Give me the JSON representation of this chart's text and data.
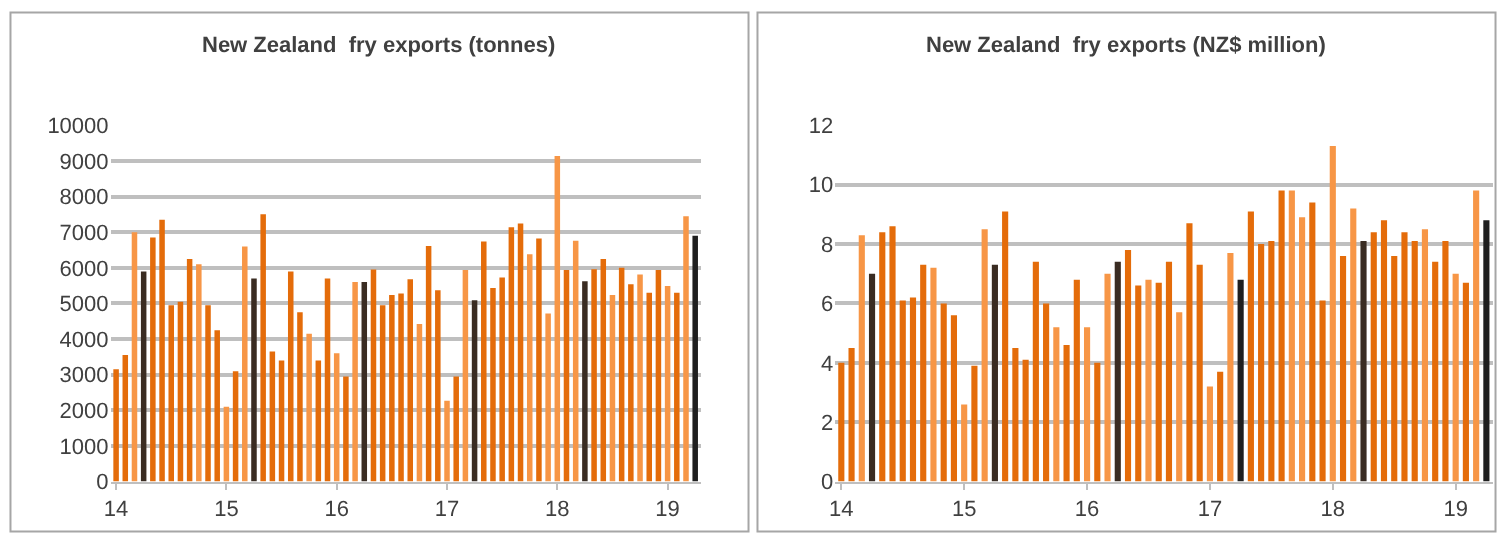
{
  "chart_data": [
    {
      "type": "bar",
      "title": "New Zealand  fry exports (tonnes)",
      "categories": [
        "14",
        null,
        null,
        null,
        null,
        null,
        null,
        null,
        null,
        null,
        null,
        null,
        "15",
        null,
        null,
        null,
        null,
        null,
        null,
        null,
        null,
        null,
        null,
        null,
        "16",
        null,
        null,
        null,
        null,
        null,
        null,
        null,
        null,
        null,
        null,
        null,
        "17",
        null,
        null,
        null,
        null,
        null,
        null,
        null,
        null,
        null,
        null,
        null,
        "18",
        null,
        null,
        null,
        null,
        null,
        null,
        null,
        null,
        null,
        null,
        null,
        "19",
        null,
        null,
        null
      ],
      "values": [
        3150,
        3550,
        7000,
        5900,
        6850,
        7350,
        4950,
        5050,
        6250,
        6100,
        4950,
        4250,
        2100,
        3100,
        6600,
        5700,
        7500,
        3650,
        3400,
        5900,
        4750,
        4150,
        3400,
        5700,
        3600,
        2950,
        5600,
        5600,
        5950,
        4950,
        5240,
        5280,
        5680,
        4420,
        6610,
        5370,
        2270,
        2950,
        5940,
        5090,
        6740,
        5430,
        5730,
        7140,
        7240,
        6380,
        6820,
        4720,
        9140,
        5940,
        6760,
        5620,
        5960,
        6250,
        5240,
        6000,
        5540,
        5810,
        5300,
        5940,
        5490,
        5300,
        7450,
        6900
      ],
      "colors": [
        "#e46c0a",
        "#e46c0a",
        "#f79646",
        "#3a2c22",
        "#e46c0a",
        "#e46c0a",
        "#e46c0a",
        "#e46c0a",
        "#e46c0a",
        "#f79646",
        "#e46c0a",
        "#e46c0a",
        "#f79646",
        "#e46c0a",
        "#f79646",
        "#3a2c22",
        "#e46c0a",
        "#e46c0a",
        "#e46c0a",
        "#e46c0a",
        "#e46c0a",
        "#f79646",
        "#e46c0a",
        "#e46c0a",
        "#f79646",
        "#e46c0a",
        "#f79646",
        "#3a2c22",
        "#e46c0a",
        "#e46c0a",
        "#e46c0a",
        "#e46c0a",
        "#e46c0a",
        "#f79646",
        "#e46c0a",
        "#e46c0a",
        "#f79646",
        "#e46c0a",
        "#f79646",
        "#3a2c22",
        "#e46c0a",
        "#e46c0a",
        "#e46c0a",
        "#e46c0a",
        "#e46c0a",
        "#f79646",
        "#e46c0a",
        "#f79646",
        "#f79646",
        "#e46c0a",
        "#f79646",
        "#3a2c22",
        "#e46c0a",
        "#e46c0a",
        "#f79646",
        "#e46c0a",
        "#e46c0a",
        "#f79646",
        "#e46c0a",
        "#e46c0a",
        "#f79646",
        "#e46c0a",
        "#f79646",
        "#1f1f1f"
      ],
      "ylim": [
        0,
        10000
      ],
      "yticks": [
        0,
        1000,
        2000,
        3000,
        4000,
        5000,
        6000,
        7000,
        8000,
        9000,
        10000
      ],
      "grid": "y"
    },
    {
      "type": "bar",
      "title": "New Zealand  fry exports (NZ$ million)",
      "categories": [
        "14",
        null,
        null,
        null,
        null,
        null,
        null,
        null,
        null,
        null,
        null,
        null,
        "15",
        null,
        null,
        null,
        null,
        null,
        null,
        null,
        null,
        null,
        null,
        null,
        "16",
        null,
        null,
        null,
        null,
        null,
        null,
        null,
        null,
        null,
        null,
        null,
        "17",
        null,
        null,
        null,
        null,
        null,
        null,
        null,
        null,
        null,
        null,
        null,
        "18",
        null,
        null,
        null,
        null,
        null,
        null,
        null,
        null,
        null,
        null,
        null,
        "19",
        null,
        null,
        null
      ],
      "values": [
        4.0,
        4.5,
        8.3,
        7.0,
        8.4,
        8.6,
        6.1,
        6.2,
        7.3,
        7.2,
        6.0,
        5.6,
        2.6,
        3.9,
        8.5,
        7.3,
        9.1,
        4.5,
        4.1,
        7.4,
        6.0,
        5.2,
        4.6,
        6.8,
        5.2,
        4.0,
        7.0,
        7.4,
        7.8,
        6.6,
        6.8,
        6.7,
        7.4,
        5.7,
        8.7,
        7.3,
        3.2,
        3.7,
        7.7,
        6.8,
        9.1,
        8.0,
        8.1,
        9.8,
        9.8,
        8.9,
        9.4,
        6.1,
        11.3,
        7.6,
        9.2,
        8.1,
        8.4,
        8.8,
        7.6,
        8.4,
        8.1,
        8.5,
        7.4,
        8.1,
        7.0,
        6.7,
        9.8,
        8.8
      ],
      "colors": [
        "#e46c0a",
        "#e46c0a",
        "#f79646",
        "#3a2c22",
        "#e46c0a",
        "#e46c0a",
        "#e46c0a",
        "#e46c0a",
        "#e46c0a",
        "#f79646",
        "#e46c0a",
        "#e46c0a",
        "#f79646",
        "#e46c0a",
        "#f79646",
        "#3a2c22",
        "#e46c0a",
        "#e46c0a",
        "#e46c0a",
        "#e46c0a",
        "#e46c0a",
        "#f79646",
        "#e46c0a",
        "#e46c0a",
        "#f79646",
        "#e46c0a",
        "#f79646",
        "#3a2c22",
        "#e46c0a",
        "#e46c0a",
        "#f79646",
        "#e46c0a",
        "#e46c0a",
        "#f79646",
        "#e46c0a",
        "#e46c0a",
        "#f79646",
        "#e46c0a",
        "#f79646",
        "#1f1f1f",
        "#e46c0a",
        "#e46c0a",
        "#e46c0a",
        "#e46c0a",
        "#f79646",
        "#f79646",
        "#e46c0a",
        "#e46c0a",
        "#f79646",
        "#e46c0a",
        "#f79646",
        "#3a2c22",
        "#e46c0a",
        "#e46c0a",
        "#e46c0a",
        "#e46c0a",
        "#e46c0a",
        "#f79646",
        "#e46c0a",
        "#e46c0a",
        "#f79646",
        "#e46c0a",
        "#f79646",
        "#1f1f1f"
      ],
      "ylim": [
        0,
        12
      ],
      "yticks": [
        0,
        2,
        4,
        6,
        8,
        10,
        12
      ],
      "grid": "y"
    }
  ]
}
